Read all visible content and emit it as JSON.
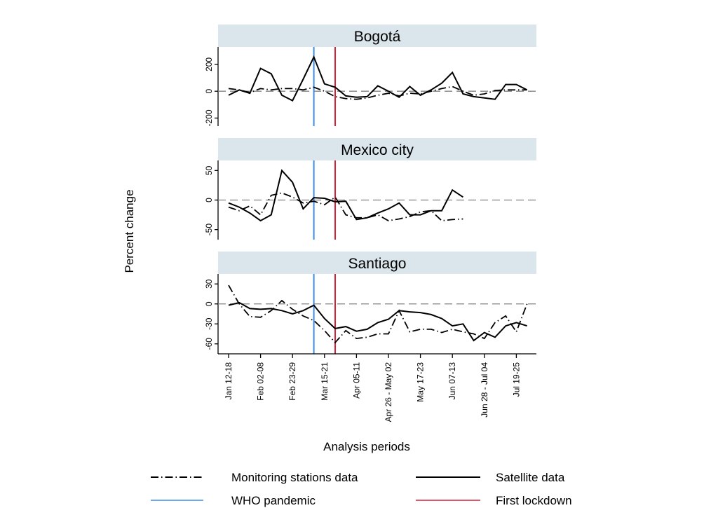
{
  "chart_data": {
    "type": "line",
    "xlabel": "Analysis periods",
    "ylabel": "Percent change",
    "x_periods_note": "weekly periods starting Jan 12-18 (index 0) through week 28",
    "x_ticks": [
      {
        "index": 0,
        "label": "Jan 12-18"
      },
      {
        "index": 3,
        "label": "Feb 02-08"
      },
      {
        "index": 6,
        "label": "Feb 23-29"
      },
      {
        "index": 9,
        "label": "Mar 15-21"
      },
      {
        "index": 12,
        "label": "Apr 05-11"
      },
      {
        "index": 15,
        "label": "Apr 26 - May 02"
      },
      {
        "index": 18,
        "label": "May 17-23"
      },
      {
        "index": 21,
        "label": "Jun 07-13"
      },
      {
        "index": 24,
        "label": "Jun 28 - Jul 04"
      },
      {
        "index": 27,
        "label": "Jul 19-25"
      }
    ],
    "reference_lines": [
      {
        "name": "WHO pandemic",
        "x_index": 8,
        "color": "#3a8ee6"
      },
      {
        "name": "First lockdown",
        "x_index": 10,
        "color": "#d6213a"
      }
    ],
    "zero_line": true,
    "panels": [
      {
        "title": "Bogotá",
        "ylim": [
          -260,
          330
        ],
        "yticks": [
          -200,
          0,
          200
        ],
        "series": [
          {
            "name": "Satellite data",
            "style": "solid",
            "values": [
              -30,
              10,
              -15,
              170,
              130,
              -30,
              -70,
              90,
              255,
              55,
              30,
              -35,
              -45,
              -40,
              40,
              0,
              -45,
              35,
              -30,
              10,
              60,
              140,
              -20,
              -40,
              -50,
              -60,
              50,
              50,
              10
            ]
          },
          {
            "name": "Monitoring stations data",
            "style": "dashdot",
            "values": [
              20,
              10,
              -10,
              20,
              10,
              20,
              20,
              10,
              30,
              0,
              -40,
              -55,
              -60,
              -50,
              -30,
              -15,
              -35,
              -15,
              -20,
              0,
              20,
              35,
              0,
              -30,
              -20,
              5,
              10,
              10,
              10
            ]
          }
        ]
      },
      {
        "title": "Mexico city",
        "ylim": [
          -67,
          67
        ],
        "yticks": [
          -50,
          0,
          50
        ],
        "series": [
          {
            "name": "Satellite data",
            "style": "solid",
            "values": [
              -5,
              -12,
              -22,
              -35,
              -25,
              50,
              30,
              -15,
              4,
              3,
              -3,
              -2,
              -33,
              -30,
              -22,
              -15,
              -5,
              -25,
              -25,
              -18,
              -18,
              17,
              5
            ]
          },
          {
            "name": "Monitoring stations data",
            "style": "dashdot",
            "values": [
              -12,
              -18,
              -10,
              -25,
              8,
              12,
              5,
              -5,
              -2,
              -8,
              5,
              -25,
              -30,
              -30,
              -25,
              -35,
              -32,
              -28,
              -20,
              -18,
              -35,
              -33,
              -32
            ]
          }
        ]
      },
      {
        "title": "Santiago",
        "ylim": [
          -75,
          45
        ],
        "yticks": [
          -60,
          -30,
          0,
          30
        ],
        "series": [
          {
            "name": "Satellite data",
            "style": "solid",
            "values": [
              -2,
              2,
              -7,
              -8,
              -7,
              -10,
              -15,
              -10,
              -2,
              -22,
              -37,
              -34,
              -41,
              -38,
              -28,
              -23,
              -10,
              -12,
              -13,
              -16,
              -22,
              -33,
              -30,
              -55,
              -43,
              -50,
              -33,
              -28,
              -33
            ]
          },
          {
            "name": "Monitoring stations data",
            "style": "dashdot",
            "values": [
              28,
              0,
              -19,
              -20,
              -10,
              5,
              -8,
              -18,
              -25,
              -40,
              -58,
              -40,
              -52,
              -50,
              -45,
              -45,
              -10,
              -42,
              -38,
              -38,
              -43,
              -38,
              -42,
              -45,
              -52,
              -28,
              -18,
              -42,
              0
            ]
          }
        ]
      }
    ],
    "legend": [
      {
        "label": "Monitoring stations data",
        "style": "dashdot",
        "color": "#000000"
      },
      {
        "label": "Satellite data",
        "style": "solid",
        "color": "#000000"
      },
      {
        "label": "WHO pandemic",
        "style": "solid",
        "color": "#3a8ee6"
      },
      {
        "label": "First lockdown",
        "style": "solid",
        "color": "#d6213a"
      }
    ],
    "legend_position": "bottom",
    "colors": {
      "strip_bg": "#dbe5ec",
      "zero_line": "#808080"
    }
  }
}
